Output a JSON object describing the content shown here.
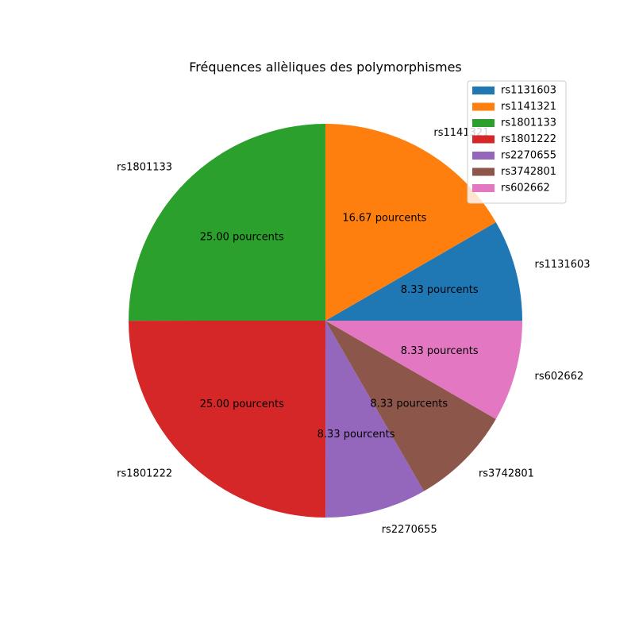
{
  "chart_data": {
    "type": "pie",
    "title": "Fréquences allèliques des polymorphismes",
    "categories": [
      "rs1131603",
      "rs1141321",
      "rs1801133",
      "rs1801222",
      "rs2270655",
      "rs3742801",
      "rs602662"
    ],
    "values": [
      8.33,
      16.67,
      25.0,
      25.0,
      8.33,
      8.33,
      8.33
    ],
    "value_labels": [
      "8.33 pourcents",
      "16.67 pourcents",
      "25.00 pourcents",
      "25.00 pourcents",
      "8.33 pourcents",
      "8.33 pourcents",
      "8.33 pourcents"
    ],
    "colors": [
      "#1f77b4",
      "#ff7f0e",
      "#2ca02c",
      "#d62728",
      "#9467bd",
      "#8c564b",
      "#e377c2"
    ],
    "start_angle_deg": 0,
    "direction": "counterclockwise",
    "legend": {
      "placement": "top-right",
      "entries": [
        "rs1131603",
        "rs1141321",
        "rs1801133",
        "rs1801222",
        "rs2270655",
        "rs3742801",
        "rs602662"
      ]
    }
  }
}
